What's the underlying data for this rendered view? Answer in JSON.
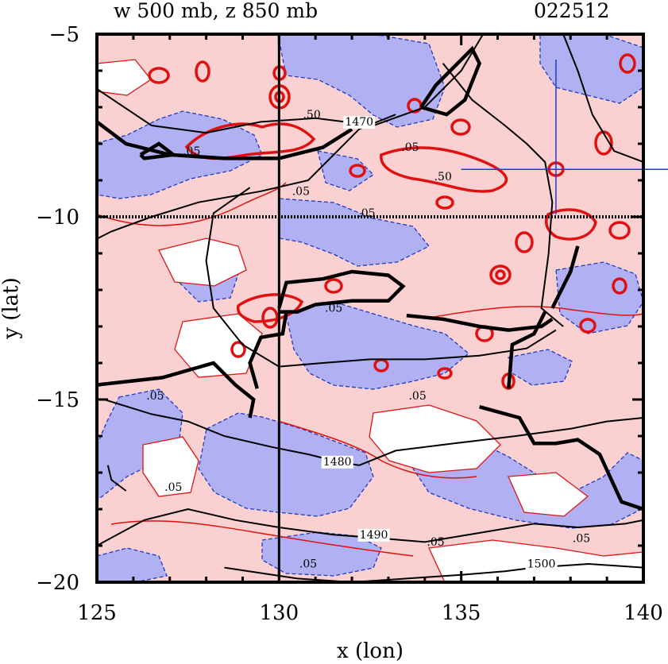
{
  "chart_data": {
    "type": "contour",
    "title_left": "w 500 mb, z 850 mb",
    "title_right": "022512",
    "xlabel": "x (lon)",
    "ylabel": "y (lat)",
    "xlim": [
      125,
      140
    ],
    "ylim": [
      -20,
      -5
    ],
    "xticks": [
      "125",
      "130",
      "135",
      "140"
    ],
    "yticks": [
      "−5",
      "−10",
      "−15",
      "−20"
    ],
    "reference_lines": [
      {
        "axis": "x",
        "value": 130,
        "style": "solid"
      },
      {
        "axis": "y",
        "value": -10,
        "style": "dotted"
      }
    ],
    "marker": {
      "lon": 137.6,
      "lat": -8.7
    },
    "w_contour_labels": [
      {
        "text": ".05",
        "lon": 127.6,
        "lat": -8.3
      },
      {
        "text": ".05",
        "lon": 130.6,
        "lat": -9.4
      },
      {
        "text": ".05",
        "lon": 132.4,
        "lat": -10.0
      },
      {
        "text": ".05",
        "lon": 133.6,
        "lat": -8.2
      },
      {
        "text": ".05",
        "lon": 126.6,
        "lat": -15.0
      },
      {
        "text": ".05",
        "lon": 127.1,
        "lat": -17.5
      },
      {
        "text": ".05",
        "lon": 131.5,
        "lat": -12.6
      },
      {
        "text": ".05",
        "lon": 133.8,
        "lat": -15.0
      },
      {
        "text": ".05",
        "lon": 138.3,
        "lat": -18.9
      },
      {
        "text": ".05",
        "lon": 134.3,
        "lat": -19.0
      },
      {
        "text": ".05",
        "lon": 130.8,
        "lat": -19.6
      },
      {
        "text": ".50",
        "lon": 130.9,
        "lat": -7.3
      },
      {
        "text": ".50",
        "lon": 134.5,
        "lat": -9.0
      }
    ],
    "z_contour_labels": [
      {
        "text": "1470",
        "lon": 132.2,
        "lat": -7.5
      },
      {
        "text": "1480",
        "lon": 131.6,
        "lat": -16.8
      },
      {
        "text": "1490",
        "lon": 132.6,
        "lat": -18.8
      },
      {
        "text": "1500",
        "lon": 137.2,
        "lat": -19.6
      }
    ],
    "z_contours": [
      {
        "level": 1470,
        "points": [
          [
            125,
            -6.5
          ],
          [
            126.5,
            -7.5
          ],
          [
            128,
            -7.7
          ],
          [
            129.5,
            -7.4
          ],
          [
            131,
            -7.3
          ],
          [
            132.6,
            -7.5
          ],
          [
            134,
            -7.0
          ],
          [
            135,
            -6.0
          ],
          [
            135.6,
            -5.0
          ]
        ]
      },
      {
        "level": 1470,
        "points": [
          [
            125,
            -10.6
          ],
          [
            125.4,
            -10.4
          ],
          [
            126.5,
            -10.0
          ],
          [
            127.8,
            -9.6
          ],
          [
            129.5,
            -9.3
          ],
          [
            130.8,
            -9.0
          ],
          [
            131.6,
            -8.2
          ],
          [
            132.2,
            -7.6
          ],
          [
            133.2,
            -7.2
          ]
        ]
      },
      {
        "level": 1470,
        "points": [
          [
            134.5,
            -5.8
          ],
          [
            135.3,
            -6.8
          ],
          [
            136.2,
            -7.5
          ],
          [
            136.8,
            -8.0
          ],
          [
            137.3,
            -8.5
          ],
          [
            137.5,
            -9.6
          ],
          [
            137.4,
            -11.0
          ],
          [
            137.2,
            -12.5
          ],
          [
            137.8,
            -13.0
          ]
        ]
      },
      {
        "level": 1470,
        "points": [
          [
            137.8,
            -5.0
          ],
          [
            138.2,
            -6.0
          ],
          [
            138.6,
            -7.2
          ],
          [
            139.2,
            -8.2
          ],
          [
            140,
            -8.5
          ]
        ]
      },
      {
        "level": 1475,
        "points": [
          [
            129.2,
            -9.2
          ],
          [
            128.2,
            -9.9
          ],
          [
            128,
            -11.2
          ],
          [
            128.2,
            -12.5
          ],
          [
            129.0,
            -13.5
          ],
          [
            130.0,
            -14.1
          ],
          [
            131.2,
            -14.0
          ],
          [
            132.5,
            -13.9
          ],
          [
            134,
            -13.9
          ],
          [
            135.5,
            -13.8
          ],
          [
            136.8,
            -13.6
          ],
          [
            137.6,
            -13.1
          ]
        ]
      },
      {
        "level": 1480,
        "points": [
          [
            125.2,
            -15.0
          ],
          [
            126.5,
            -15.4
          ],
          [
            127.5,
            -15.6
          ],
          [
            128.5,
            -16.0
          ],
          [
            129.8,
            -16.3
          ],
          [
            130.8,
            -16.5
          ],
          [
            131.6,
            -16.7
          ],
          [
            132.2,
            -16.8
          ],
          [
            133.2,
            -16.4
          ],
          [
            134.8,
            -16.2
          ],
          [
            136.5,
            -16.0
          ],
          [
            138.0,
            -15.8
          ],
          [
            139.0,
            -15.6
          ],
          [
            140,
            -15.5
          ]
        ]
      },
      {
        "level": 1490,
        "points": [
          [
            125,
            -19.0
          ],
          [
            126.3,
            -18.3
          ],
          [
            127.5,
            -18.0
          ],
          [
            128.8,
            -18.3
          ],
          [
            130,
            -18.5
          ],
          [
            131.5,
            -18.7
          ],
          [
            132.8,
            -18.8
          ],
          [
            134,
            -18.9
          ],
          [
            135.8,
            -18.6
          ],
          [
            137,
            -18.4
          ],
          [
            138.2,
            -18.5
          ],
          [
            139.5,
            -18.4
          ],
          [
            140,
            -18.3
          ]
        ]
      },
      {
        "level": 1500,
        "points": [
          [
            128.5,
            -19.6
          ],
          [
            130.5,
            -19.9
          ],
          [
            132,
            -20.0
          ],
          [
            133.5,
            -19.9
          ],
          [
            135,
            -19.8
          ],
          [
            136.2,
            -19.7
          ],
          [
            137.0,
            -19.6
          ],
          [
            138.5,
            -19.5
          ],
          [
            140,
            -19.6
          ]
        ]
      },
      {
        "level": 1475,
        "points": [
          [
            125.3,
            -16.8
          ],
          [
            125.4,
            -17.2
          ],
          [
            125.8,
            -17.5
          ]
        ]
      }
    ],
    "bold_contours": [
      {
        "points": [
          [
            125,
            -7.4
          ],
          [
            125.8,
            -8.0
          ],
          [
            127,
            -8.3
          ],
          [
            128.5,
            -8.4
          ],
          [
            130,
            -8.4
          ],
          [
            131.2,
            -8.1
          ],
          [
            132.0,
            -7.6
          ]
        ]
      },
      {
        "points": [
          [
            126.2,
            -8.3
          ],
          [
            126.7,
            -8.0
          ],
          [
            127.1,
            -8.3
          ],
          [
            126.3,
            -8.4
          ],
          [
            126.2,
            -8.3
          ]
        ]
      },
      {
        "points": [
          [
            133.9,
            -7.0
          ],
          [
            134.6,
            -7.2
          ],
          [
            135.1,
            -6.8
          ],
          [
            135.5,
            -5.8
          ],
          [
            135.3,
            -5.4
          ],
          [
            134.8,
            -5.9
          ],
          [
            134.3,
            -6.4
          ],
          [
            133.9,
            -7.0
          ]
        ]
      },
      {
        "points": [
          [
            130,
            -12.5
          ],
          [
            130.2,
            -11.8
          ],
          [
            131.2,
            -11.7
          ],
          [
            132.0,
            -11.5
          ],
          [
            133,
            -11.6
          ],
          [
            133.4,
            -11.9
          ],
          [
            133.0,
            -12.3
          ],
          [
            132.0,
            -12.3
          ],
          [
            131.0,
            -12.4
          ],
          [
            130.5,
            -12.6
          ],
          [
            130,
            -12.6
          ]
        ]
      },
      {
        "points": [
          [
            125,
            -14.6
          ],
          [
            126.8,
            -14.4
          ],
          [
            128.2,
            -14.0
          ],
          [
            128.8,
            -14.6
          ],
          [
            129.3,
            -15.0
          ],
          [
            129.2,
            -15.5
          ]
        ]
      },
      {
        "points": [
          [
            129.4,
            -14.7
          ],
          [
            129.2,
            -14.0
          ],
          [
            129.5,
            -13.3
          ],
          [
            130.1,
            -13.2
          ],
          [
            130.2,
            -12.6
          ]
        ]
      },
      {
        "points": [
          [
            133.5,
            -12.7
          ],
          [
            134.5,
            -12.8
          ],
          [
            135.5,
            -13.0
          ],
          [
            136.3,
            -13.1
          ],
          [
            137.2,
            -13.0
          ],
          [
            137.5,
            -12.8
          ]
        ]
      },
      {
        "points": [
          [
            135.5,
            -15.2
          ],
          [
            136.6,
            -15.5
          ],
          [
            137.0,
            -16.2
          ],
          [
            137.6,
            -16.2
          ],
          [
            138.2,
            -16.1
          ],
          [
            138.8,
            -16.5
          ],
          [
            139.4,
            -17.8
          ],
          [
            140,
            -18.0
          ]
        ]
      },
      {
        "points": [
          [
            136.3,
            -14.7
          ],
          [
            136.4,
            -13.5
          ],
          [
            137.0,
            -13.2
          ],
          [
            137.3,
            -12.6
          ]
        ]
      },
      {
        "points": [
          [
            137.5,
            -12.5
          ],
          [
            138.0,
            -11.5
          ],
          [
            138.2,
            -10.8
          ]
        ]
      }
    ]
  }
}
